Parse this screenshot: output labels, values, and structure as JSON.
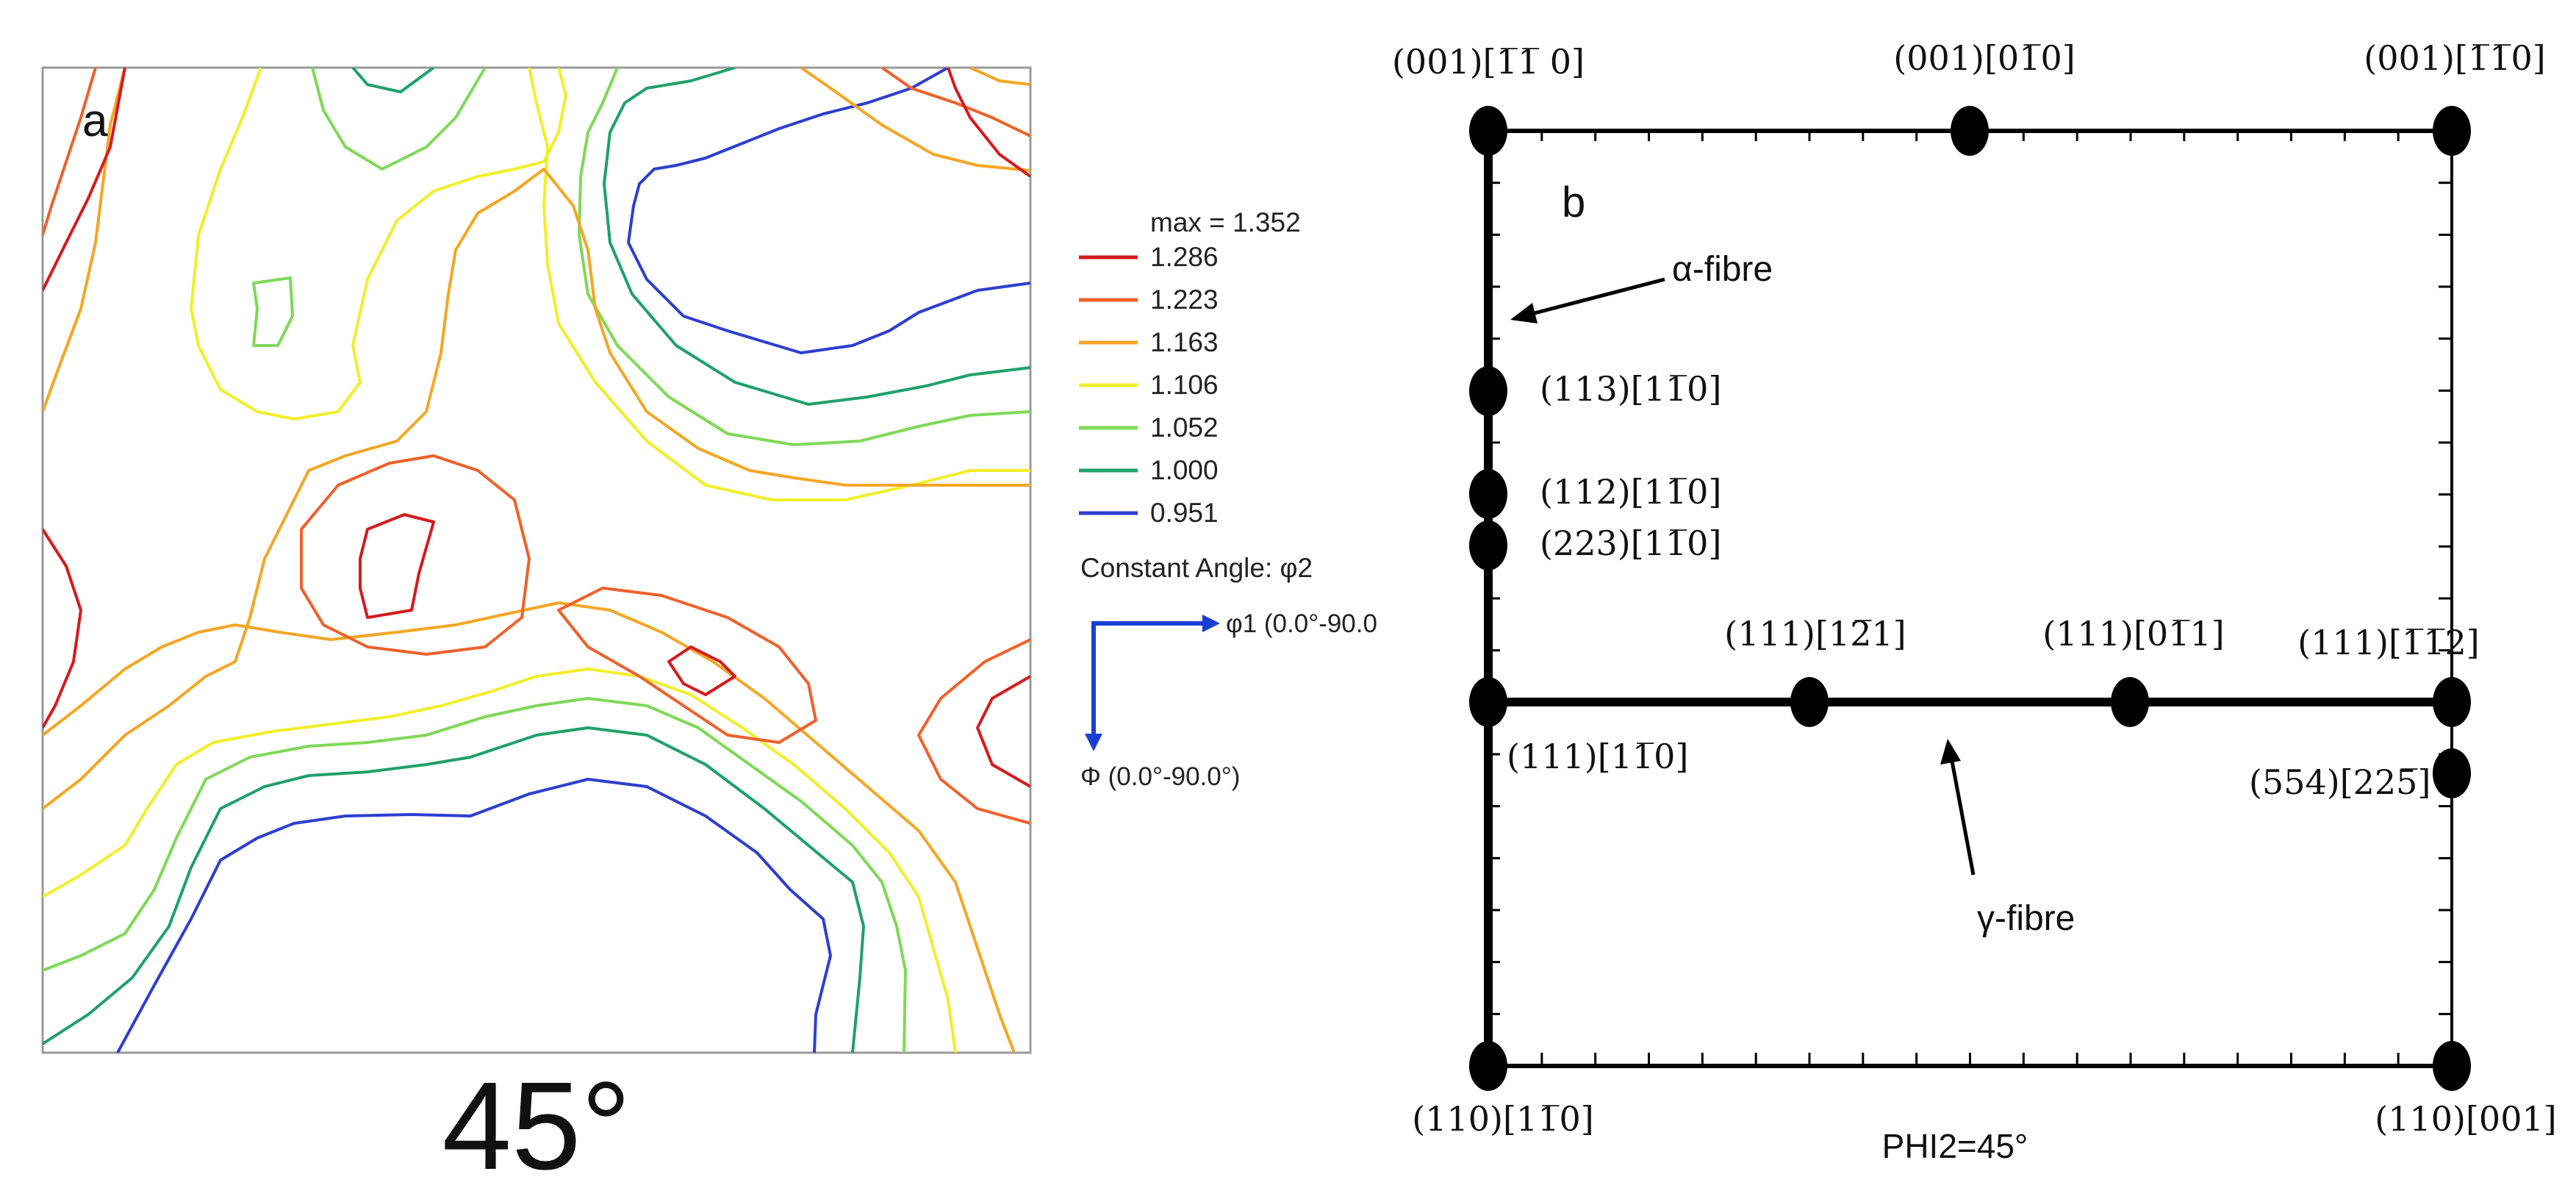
{
  "panel_a": {
    "label": "a",
    "caption": "45°",
    "legend": {
      "max_label": "max = 1.352",
      "levels": [
        {
          "value": "1.286",
          "color": "#d7191c"
        },
        {
          "value": "1.223",
          "color": "#f0602a"
        },
        {
          "value": "1.163",
          "color": "#f5a623"
        },
        {
          "value": "1.106",
          "color": "#f2ee2a"
        },
        {
          "value": "1.052",
          "color": "#7ed957"
        },
        {
          "value": "1.000",
          "color": "#1fa06a"
        },
        {
          "value": "0.951",
          "color": "#2c3fd0"
        }
      ],
      "constant_angle": "Constant Angle: φ2",
      "axis_h": "φ1 (0.0°-90.0",
      "axis_v": "Φ (0.0°-90.0°)",
      "axis_color": "#1a3fd6"
    }
  },
  "panel_b": {
    "label": "b",
    "bottom_label": "PHI2=45°",
    "alpha_label": "α-fibre",
    "gamma_label": "γ-fibre",
    "orientations": {
      "top_left": "(001)[1̅1̅ 0]",
      "top_mid": "(001)[01̅0]",
      "top_right": "(001)[1̅1̅0]",
      "o113": "(113)[11̅0]",
      "o112": "(112)[11̅0]",
      "o223": "(223)[11̅0]",
      "o111_121": "(111)[12̅1]",
      "o111_011": "(111)[01̅1]",
      "o111_112": "(111)[1̅1̅2]",
      "o111_110": "(111)[11̅0]",
      "o554": "(554)[225̅]",
      "bottom_left": "(110)[11̅0]",
      "bottom_right": "(110)[001]"
    }
  }
}
